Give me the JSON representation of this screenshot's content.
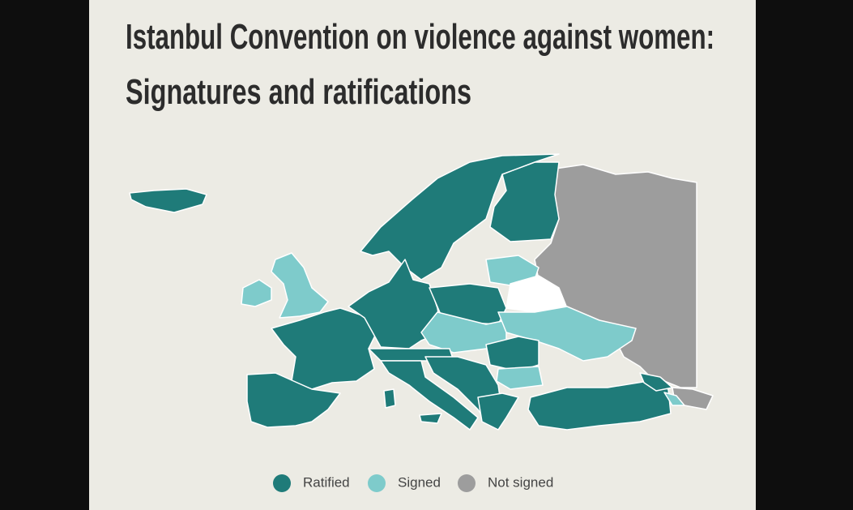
{
  "title_lines": [
    "Istanbul Convention on violence against women:",
    "Signatures and ratifications"
  ],
  "legend": [
    {
      "label": "Ratified",
      "color": "#1f7b79"
    },
    {
      "label": "Signed",
      "color": "#7ecbcb"
    },
    {
      "label": "Not signed",
      "color": "#9d9d9d"
    }
  ]
}
